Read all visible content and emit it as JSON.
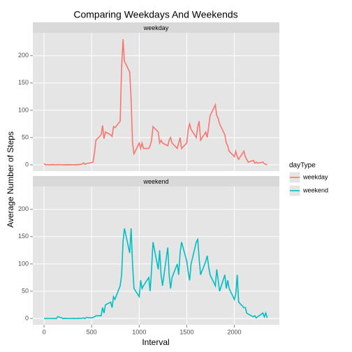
{
  "chart_data": {
    "type": "line",
    "title": "Comparing Weekdays And Weekends",
    "xlabel": "Interval",
    "ylabel": "Average Number of Steps",
    "legend_title": "dayType",
    "x": [
      0,
      15,
      30,
      45,
      100,
      115,
      130,
      145,
      200,
      215,
      230,
      245,
      300,
      315,
      330,
      345,
      400,
      415,
      430,
      445,
      500,
      515,
      530,
      545,
      600,
      615,
      630,
      645,
      700,
      715,
      730,
      745,
      800,
      815,
      830,
      845,
      900,
      915,
      930,
      945,
      1000,
      1015,
      1030,
      1045,
      1100,
      1115,
      1130,
      1145,
      1200,
      1215,
      1230,
      1245,
      1300,
      1315,
      1330,
      1345,
      1400,
      1415,
      1430,
      1445,
      1500,
      1515,
      1530,
      1545,
      1600,
      1615,
      1630,
      1645,
      1700,
      1715,
      1730,
      1745,
      1800,
      1815,
      1830,
      1845,
      1900,
      1915,
      1930,
      1945,
      2000,
      2015,
      2030,
      2045,
      2100,
      2115,
      2130,
      2145,
      2200,
      2215,
      2230,
      2245,
      2300,
      2315,
      2330,
      2345
    ],
    "series": [
      {
        "name": "weekday",
        "color": "#f8766d",
        "values": [
          2.3,
          0.2,
          0.4,
          0.1,
          0.4,
          0,
          0.1,
          0.5,
          0,
          0.2,
          0.1,
          0.3,
          0.1,
          0,
          0.2,
          0.1,
          1.2,
          3.5,
          0.8,
          2.1,
          4.2,
          5.1,
          22,
          45,
          55,
          72,
          48,
          60,
          55,
          52,
          70,
          68,
          80,
          178,
          230,
          190,
          170,
          120,
          40,
          20,
          40,
          30,
          40,
          30,
          30,
          35,
          45,
          70,
          60,
          40,
          45,
          40,
          35,
          45,
          50,
          40,
          30,
          40,
          50,
          30,
          40,
          65,
          75,
          65,
          50,
          70,
          80,
          45,
          60,
          50,
          70,
          90,
          110,
          90,
          85,
          75,
          55,
          40,
          35,
          25,
          15,
          25,
          15,
          10,
          25,
          15,
          10,
          5,
          8,
          3,
          5,
          3,
          5,
          2,
          1,
          0.3
        ]
      },
      {
        "name": "weekend",
        "color": "#00bfc4",
        "values": [
          0.2,
          0,
          0.1,
          0,
          0,
          0.1,
          0,
          3.5,
          0,
          0.2,
          0.1,
          0,
          0,
          0.3,
          0,
          0.1,
          0.5,
          1,
          0,
          2,
          1,
          2,
          3,
          5,
          5,
          20,
          10,
          25,
          30,
          20,
          40,
          35,
          60,
          80,
          140,
          165,
          120,
          165,
          100,
          55,
          40,
          70,
          55,
          60,
          75,
          50,
          90,
          140,
          90,
          125,
          80,
          60,
          130,
          80,
          55,
          75,
          100,
          80,
          120,
          140,
          105,
          85,
          70,
          100,
          140,
          145,
          110,
          80,
          105,
          115,
          95,
          80,
          60,
          90,
          70,
          50,
          80,
          55,
          70,
          55,
          35,
          45,
          80,
          30,
          20,
          20,
          10,
          8,
          3,
          5,
          1,
          3,
          10,
          3,
          10,
          1
        ]
      }
    ],
    "xlim": [
      -118,
      2473
    ],
    "xticks": [
      0,
      500,
      1000,
      1500,
      2000
    ],
    "ylim": [
      -11.5,
      241.9
    ],
    "yticks": [
      0,
      50,
      100,
      150,
      200
    ],
    "grid": true
  }
}
